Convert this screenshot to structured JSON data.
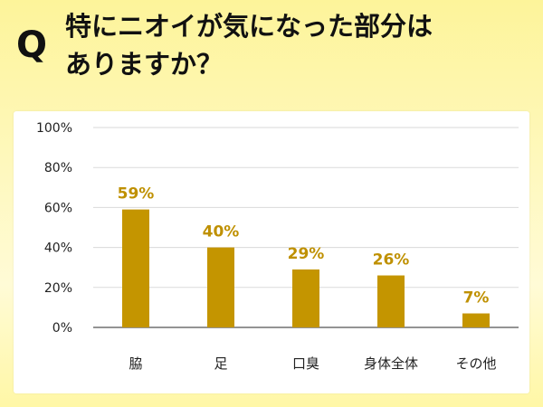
{
  "header": {
    "q_mark": "Q",
    "title_line1": "特にニオイが気になった部分は",
    "title_line2": "ありますか？"
  },
  "colors": {
    "bar": "#c49500",
    "label": "#bf9000",
    "grid": "#dadada",
    "axis": "#555555"
  },
  "chart_data": {
    "type": "bar",
    "categories": [
      "脇",
      "足",
      "口臭",
      "身体全体",
      "その他"
    ],
    "values": [
      59,
      40,
      29,
      26,
      7
    ],
    "data_labels": [
      "59%",
      "40%",
      "29%",
      "26%",
      "7%"
    ],
    "title": "",
    "xlabel": "",
    "ylabel": "",
    "ylim": [
      0,
      100
    ],
    "yticks": [
      0,
      20,
      40,
      60,
      80,
      100
    ],
    "ytick_labels": [
      "0%",
      "20%",
      "40%",
      "60%",
      "80%",
      "100%"
    ],
    "grid": true,
    "legend": false
  }
}
